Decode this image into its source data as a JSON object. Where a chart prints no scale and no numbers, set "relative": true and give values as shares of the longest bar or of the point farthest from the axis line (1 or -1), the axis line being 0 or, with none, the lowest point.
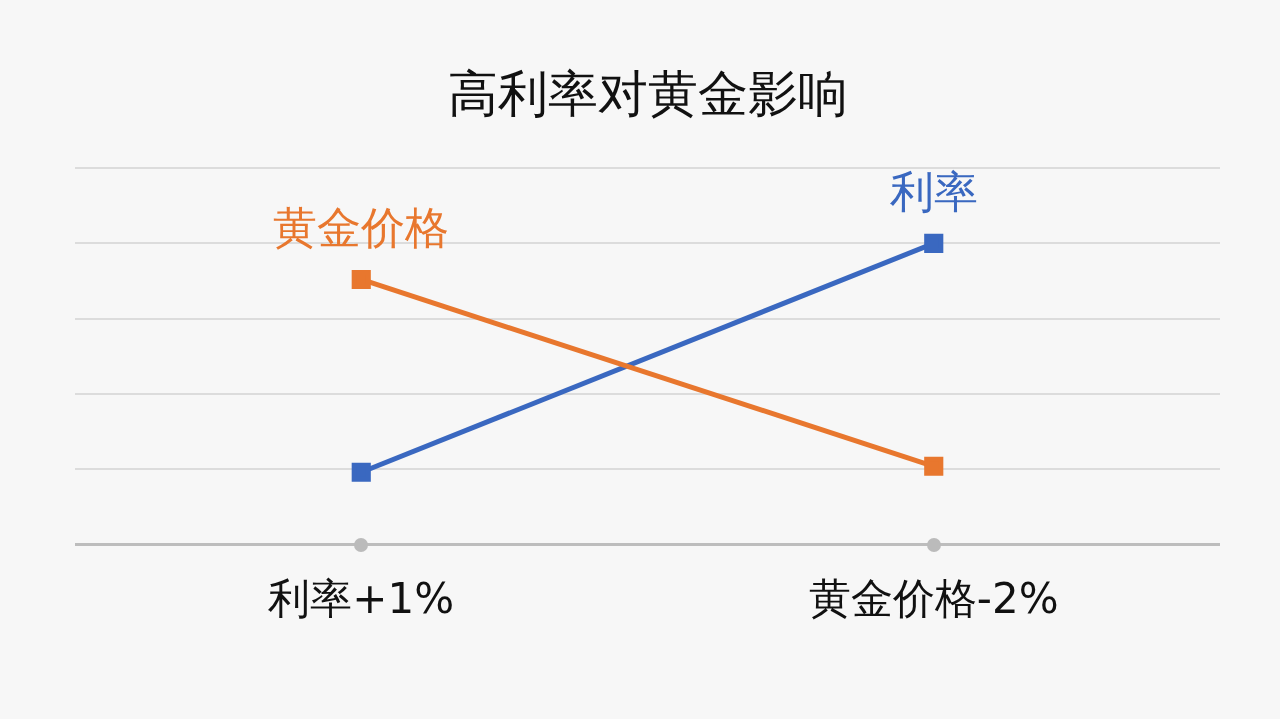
{
  "chart_data": {
    "type": "line",
    "title": "高利率对黄金影响",
    "categories": [
      "利率+1%",
      "黄金价格-2%"
    ],
    "relative": true,
    "grid": "y",
    "marker": "square",
    "line_style": "solid",
    "legend": false,
    "series": [
      {
        "name": "黄金价格",
        "color": "#e8772e",
        "values": [
          0.88,
          0.26
        ]
      },
      {
        "name": "利率",
        "color": "#3a68c0",
        "values": [
          0.24,
          1
        ]
      }
    ]
  }
}
